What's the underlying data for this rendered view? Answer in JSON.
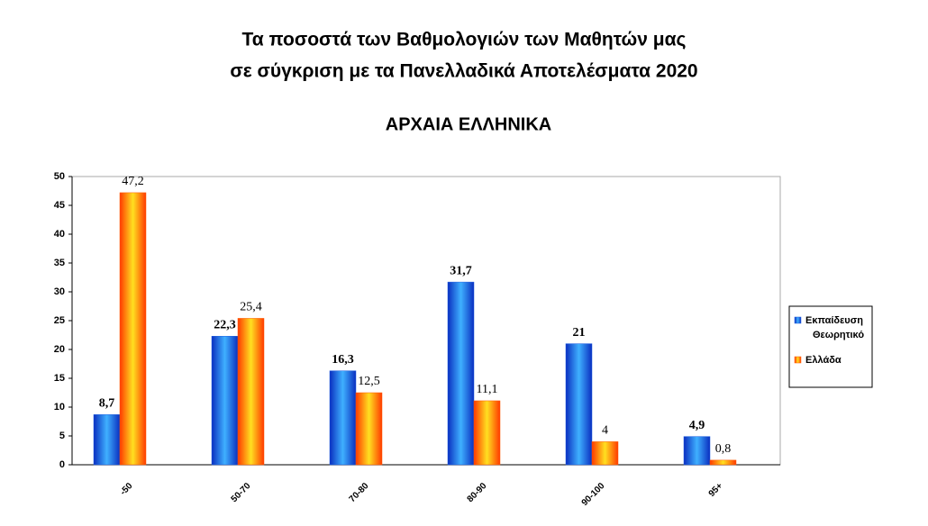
{
  "chart_data": {
    "type": "bar",
    "title": "Τα ποσοστά των Βαθμολογιών των Μαθητών μας",
    "subtitle": "σε σύγκριση με τα Πανελλαδικά Αποτελέσματα 2020",
    "heading": "ΑΡΧΑΙΑ ΕΛΛΗΝΙΚΑ",
    "categories": [
      "-50",
      "50-70",
      "70-80",
      "80-90",
      "90-100",
      "95+"
    ],
    "series": [
      {
        "name": "Εκπαίδευση Θεωρητικό",
        "color": "#1f5fe0",
        "values": [
          8.7,
          22.3,
          16.3,
          31.7,
          21,
          4.9
        ],
        "value_labels": [
          "8,7",
          "22,3",
          "16,3",
          "31,7",
          "21",
          "4,9"
        ]
      },
      {
        "name": "Ελλάδα",
        "color": "#ff5a00",
        "values": [
          47.2,
          25.4,
          12.5,
          11.1,
          4,
          0.8
        ],
        "value_labels": [
          "47,2",
          "25,4",
          "12,5",
          "11,1",
          "4",
          "0,8"
        ]
      }
    ],
    "ylim": [
      0,
      50
    ],
    "yticks": [
      0,
      5,
      10,
      15,
      20,
      25,
      30,
      35,
      40,
      45,
      50
    ],
    "legend": "right"
  }
}
